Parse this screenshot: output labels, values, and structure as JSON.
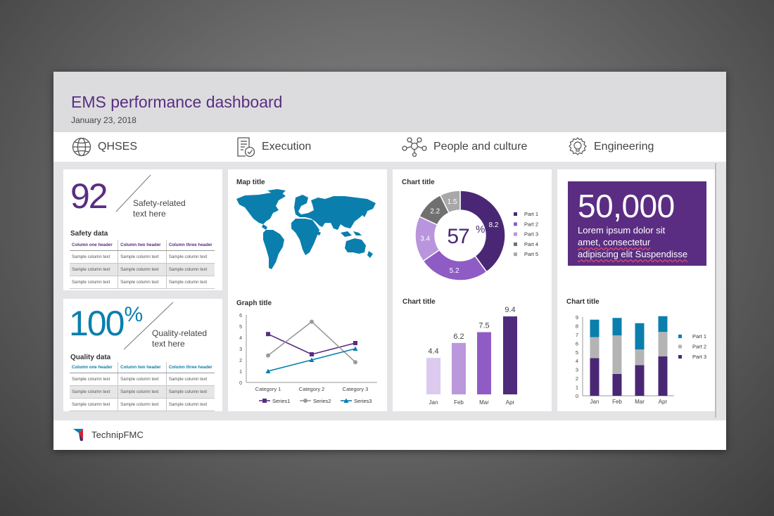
{
  "header": {
    "title": "EMS performance dashboard",
    "date": "January 23, 2018"
  },
  "nav": [
    {
      "label": "QHSES",
      "icon": "globe-icon"
    },
    {
      "label": "Execution",
      "icon": "checklist-icon"
    },
    {
      "label": "People and culture",
      "icon": "network-icon"
    },
    {
      "label": "Engineering",
      "icon": "lightbulb-gear-icon"
    }
  ],
  "safety": {
    "value": "92",
    "label_line1": "Safety-related",
    "label_line2": "text here",
    "table_title": "Safety data",
    "headers": [
      "Column one header",
      "Column two header",
      "Column three header"
    ],
    "rows": [
      [
        "Sample column text",
        "Sample column text",
        "Sample column text"
      ],
      [
        "Sample column text",
        "Sample column text",
        "Sample column text"
      ],
      [
        "Sample column text",
        "Sample column text",
        "Sample column text"
      ]
    ]
  },
  "quality": {
    "value": "100",
    "unit": "%",
    "label_line1": "Quality-related",
    "label_line2": "text here",
    "table_title": "Quality data",
    "headers": [
      "Column one header",
      "Column two header",
      "Column three header"
    ],
    "rows": [
      [
        "Sample column text",
        "Sample column text",
        "Sample column text"
      ],
      [
        "Sample column text",
        "Sample column text",
        "Sample column text"
      ],
      [
        "Sample column text",
        "Sample column text",
        "Sample column text"
      ]
    ]
  },
  "map": {
    "title": "Map title"
  },
  "engineering_kpi": {
    "value": "50,000",
    "line1": "Lorem ipsum dolor sit",
    "line2": "amet, consectetur",
    "line3": "adipiscing elit Suspendisse"
  },
  "brand": {
    "name": "TechnipFMC"
  },
  "colors": {
    "purple": "#5a2d82",
    "blue": "#0a7fae",
    "gray": "#8a8a8a"
  },
  "chart_data": [
    {
      "type": "line",
      "title": "Graph title",
      "categories": [
        "Category 1",
        "Category 2",
        "Category 3"
      ],
      "ylim": [
        0,
        6
      ],
      "yticks": [
        0,
        1,
        2,
        3,
        4,
        5,
        6
      ],
      "series": [
        {
          "name": "Series1",
          "values": [
            4.3,
            2.5,
            3.5
          ],
          "color": "#5a2d82",
          "marker": "square"
        },
        {
          "name": "Series2",
          "values": [
            2.4,
            5.4,
            1.8
          ],
          "color": "#9a9a9a",
          "marker": "circle"
        },
        {
          "name": "Series3",
          "values": [
            1.0,
            2.0,
            3.0
          ],
          "color": "#0a7fae",
          "marker": "triangle"
        }
      ],
      "legend": "bottom"
    },
    {
      "type": "pie",
      "title": "Chart title",
      "center_value": "57",
      "center_unit": "%",
      "slices": [
        {
          "name": "Part 1",
          "value": 8.2,
          "color": "#4a2774"
        },
        {
          "name": "Part 2",
          "value": 5.2,
          "color": "#8e5cc4"
        },
        {
          "name": "Part 3",
          "value": 3.4,
          "color": "#b895dc"
        },
        {
          "name": "Part 4",
          "value": 2.2,
          "color": "#707070"
        },
        {
          "name": "Part 5",
          "value": 1.5,
          "color": "#a8a8a8"
        }
      ],
      "legend": "right"
    },
    {
      "type": "bar",
      "title": "Chart title",
      "categories": [
        "Jan",
        "Feb",
        "Mar",
        "Apr"
      ],
      "values": [
        4.4,
        6.2,
        7.5,
        9.4
      ],
      "colors": [
        "#dccbee",
        "#bb97dc",
        "#8f5cc5",
        "#4f2b7c"
      ],
      "ylim": [
        0,
        10
      ]
    },
    {
      "type": "bar",
      "stacked": true,
      "title": "Chart title",
      "categories": [
        "Jan",
        "Feb",
        "Mar",
        "Apr"
      ],
      "ylim": [
        0,
        9
      ],
      "yticks": [
        0,
        1,
        2,
        3,
        4,
        5,
        6,
        7,
        8,
        9
      ],
      "series": [
        {
          "name": "Part 3",
          "values": [
            4.3,
            2.5,
            3.5,
            4.5
          ],
          "color": "#4a2774"
        },
        {
          "name": "Part 2",
          "values": [
            2.4,
            4.4,
            1.8,
            2.8
          ],
          "color": "#b4b4b4"
        },
        {
          "name": "Part 1",
          "values": [
            2.0,
            2.0,
            3.0,
            1.8
          ],
          "color": "#0a7fae"
        }
      ],
      "legend_order": [
        "Part 1",
        "Part 2",
        "Part 3"
      ],
      "legend": "right"
    }
  ]
}
